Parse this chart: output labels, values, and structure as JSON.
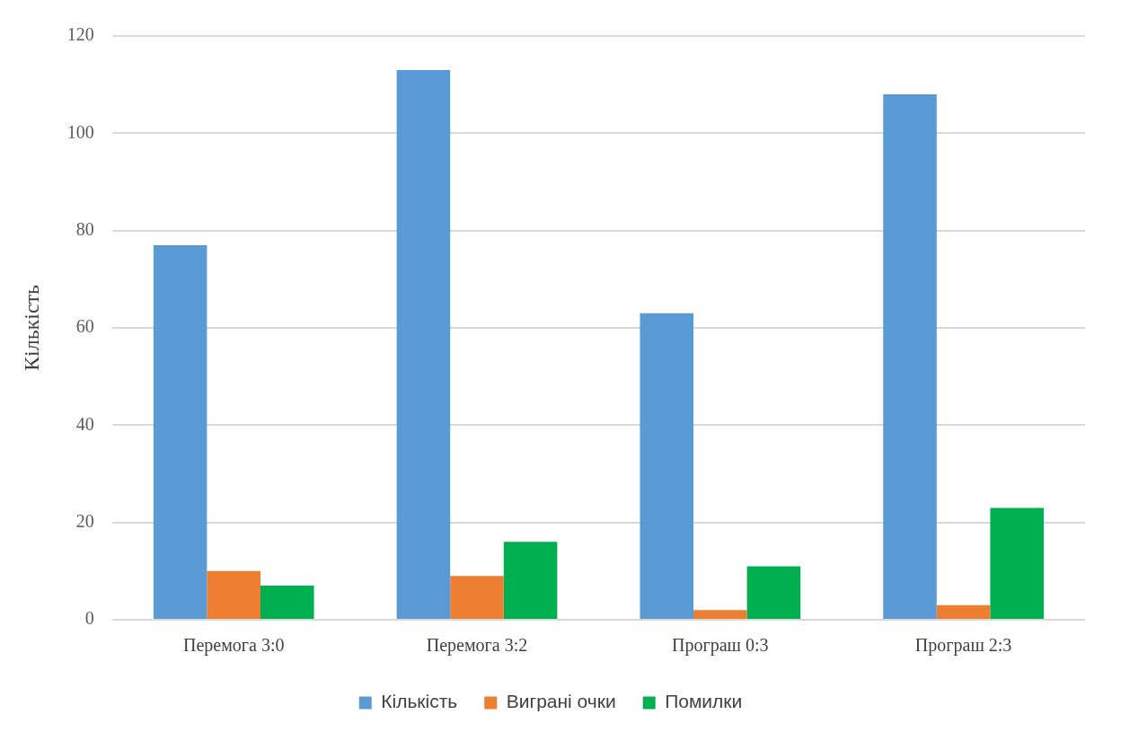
{
  "chart_data": {
    "type": "bar",
    "ylabel": "Кількість",
    "categories": [
      "Перемога 3:0",
      "Перемога 3:2",
      "Програш 0:3",
      "Програш 2:3"
    ],
    "series": [
      {
        "name": "Кількість",
        "color": "#5b9bd5",
        "values": [
          77,
          113,
          63,
          108
        ]
      },
      {
        "name": "Виграні очки",
        "color": "#ed7d31",
        "values": [
          10,
          9,
          2,
          3
        ]
      },
      {
        "name": "Помилки",
        "color": "#00b050",
        "values": [
          7,
          16,
          11,
          23
        ]
      }
    ],
    "ylim": [
      0,
      120
    ],
    "yticks": [
      0,
      20,
      40,
      60,
      80,
      100,
      120
    ],
    "grid": "y",
    "legend": "bottom"
  }
}
